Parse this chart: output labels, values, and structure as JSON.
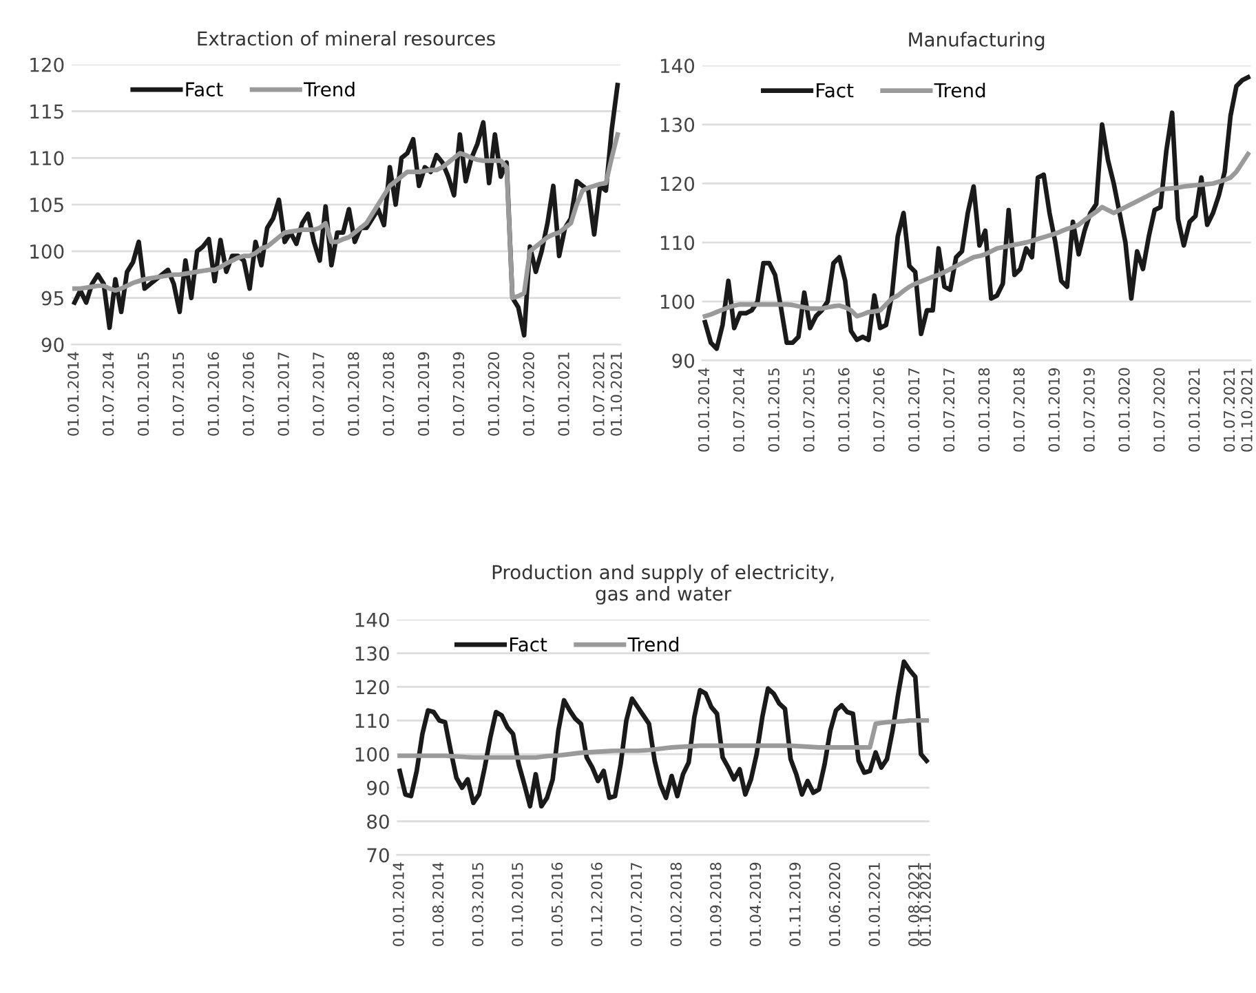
{
  "chart_data": [
    {
      "type": "line",
      "title": "Extraction of mineral resources",
      "ylim": [
        90,
        120
      ],
      "yticks": [
        90,
        95,
        100,
        105,
        110,
        115,
        120
      ],
      "grid": "y",
      "legend": "top left",
      "line_style": "solid",
      "marker": "none",
      "categories": [
        "01.01.2014",
        null,
        null,
        null,
        null,
        null,
        "01.07.2014",
        null,
        null,
        null,
        null,
        null,
        "01.01.2015",
        null,
        null,
        null,
        null,
        null,
        "01.07.2015",
        null,
        null,
        null,
        null,
        null,
        "01.01.2016",
        null,
        null,
        null,
        null,
        null,
        "01.07.2016",
        null,
        null,
        null,
        null,
        null,
        "01.01.2017",
        null,
        null,
        null,
        null,
        null,
        "01.07.2017",
        null,
        null,
        null,
        null,
        null,
        "01.01.2018",
        null,
        null,
        null,
        null,
        null,
        "01.07.2018",
        null,
        null,
        null,
        null,
        null,
        "01.01.2019",
        null,
        null,
        null,
        null,
        null,
        "01.07.2019",
        null,
        null,
        null,
        null,
        null,
        "01.01.2020",
        null,
        null,
        null,
        null,
        null,
        "01.07.2020",
        null,
        null,
        null,
        null,
        null,
        "01.01.2021",
        null,
        null,
        null,
        null,
        null,
        "01.07.2021",
        null,
        null,
        "01.10.2021"
      ],
      "series": [
        {
          "name": "Fact",
          "color": "#1a1a1a",
          "values": [
            94.5,
            95.8,
            94.5,
            96.5,
            97.5,
            96.5,
            91.8,
            97,
            93.5,
            97.8,
            98.8,
            101,
            96,
            96.5,
            97,
            97.5,
            98,
            96.5,
            93.5,
            99,
            95,
            100,
            100.5,
            101.3,
            96.8,
            101.2,
            97.8,
            99.5,
            99.5,
            99,
            96,
            101,
            98.5,
            102.5,
            103.5,
            105.5,
            101,
            102,
            100.8,
            103,
            104,
            101,
            99,
            104.8,
            98.5,
            102,
            102,
            104.5,
            101,
            102.5,
            102.5,
            103.5,
            104.5,
            102.8,
            109,
            105,
            110,
            110.5,
            112,
            107,
            109,
            108.5,
            110.3,
            109.5,
            108,
            106,
            112.5,
            107.5,
            110,
            111.5,
            113.8,
            107.3,
            112.5,
            108,
            109.5,
            95,
            94,
            91,
            100.5,
            97.8,
            100,
            103,
            107,
            99.5,
            102.5,
            103.5,
            107.5,
            107,
            106.5,
            101.8,
            107,
            106.5,
            113,
            117.8
          ]
        },
        {
          "name": "Trend",
          "color": "#9a9a9a",
          "values": [
            96,
            96,
            96.1,
            96.2,
            96.3,
            96.3,
            96,
            95.8,
            96,
            96.3,
            96.6,
            96.8,
            97,
            97.1,
            97.2,
            97.3,
            97.4,
            97.5,
            97.5,
            97.6,
            97.7,
            97.8,
            97.9,
            98,
            98,
            98.3,
            98.7,
            99,
            99.3,
            99.5,
            99.5,
            99.8,
            100.3,
            100.5,
            101,
            101.5,
            102,
            102.1,
            102.2,
            102.3,
            102.3,
            102.3,
            102.5,
            103,
            101,
            101,
            101.3,
            101.5,
            102,
            102.5,
            103,
            104,
            105,
            106,
            107,
            107.5,
            108,
            108.5,
            108.5,
            108.5,
            108.6,
            108.7,
            108.7,
            109,
            109.5,
            110,
            110.5,
            110.3,
            110,
            109.8,
            109.7,
            109.7,
            109.7,
            109.7,
            109,
            95,
            95.2,
            95.5,
            100,
            100.5,
            101,
            101.5,
            101.8,
            102,
            102.5,
            103,
            105,
            106.5,
            106.8,
            107,
            107.2,
            107.3,
            110,
            112.5
          ]
        }
      ]
    },
    {
      "type": "line",
      "title": "Manufacturing",
      "ylim": [
        90,
        140
      ],
      "yticks": [
        90,
        100,
        110,
        120,
        130,
        140
      ],
      "grid": "y",
      "legend": "top left",
      "line_style": "solid",
      "marker": "none",
      "categories": [
        "01.01.2014",
        null,
        null,
        null,
        null,
        null,
        "01.07.2014",
        null,
        null,
        null,
        null,
        null,
        "01.01.2015",
        null,
        null,
        null,
        null,
        null,
        "01.07.2015",
        null,
        null,
        null,
        null,
        null,
        "01.01.2016",
        null,
        null,
        null,
        null,
        null,
        "01.07.2016",
        null,
        null,
        null,
        null,
        null,
        "01.01.2017",
        null,
        null,
        null,
        null,
        null,
        "01.07.2017",
        null,
        null,
        null,
        null,
        null,
        "01.01.2018",
        null,
        null,
        null,
        null,
        null,
        "01.07.2018",
        null,
        null,
        null,
        null,
        null,
        "01.01.2019",
        null,
        null,
        null,
        null,
        null,
        "01.07.2019",
        null,
        null,
        null,
        null,
        null,
        "01.01.2020",
        null,
        null,
        null,
        null,
        null,
        "01.07.2020",
        null,
        null,
        null,
        null,
        null,
        "01.01.2021",
        null,
        null,
        null,
        null,
        null,
        "01.07.2021",
        null,
        null,
        "01.10.2021"
      ],
      "series": [
        {
          "name": "Fact",
          "color": "#1a1a1a",
          "values": [
            96.5,
            93,
            92,
            96,
            103.5,
            95.5,
            98,
            98,
            98.5,
            100,
            106.5,
            106.5,
            104.5,
            99,
            93,
            93,
            94,
            101.5,
            95.5,
            97.5,
            98.5,
            100,
            106.5,
            107.5,
            103.5,
            95,
            93.5,
            94,
            93.5,
            101,
            95.5,
            96,
            101,
            111,
            115,
            106,
            105,
            94.5,
            98.5,
            98.5,
            109,
            102.5,
            102,
            107.5,
            108.5,
            115,
            119.5,
            109.5,
            112,
            100.5,
            101,
            103,
            115.5,
            104.5,
            105.5,
            109,
            107.5,
            121,
            121.5,
            115,
            110,
            103.5,
            102.5,
            113.5,
            108,
            112,
            115,
            116.5,
            130,
            124,
            120,
            115,
            110,
            100.5,
            108.5,
            105.5,
            111,
            115.5,
            116,
            125.5,
            132,
            114,
            109.5,
            113.5,
            114.5,
            121,
            113,
            115,
            118,
            122,
            131.5,
            136.5,
            137.5,
            138
          ]
        },
        {
          "name": "Trend",
          "color": "#9a9a9a",
          "values": [
            97.5,
            97.8,
            98.2,
            98.6,
            99,
            99.3,
            99.5,
            99.5,
            99.5,
            99.5,
            99.5,
            99.5,
            99.5,
            99.5,
            99.5,
            99.4,
            99.2,
            99,
            98.8,
            98.8,
            98.8,
            99,
            99.2,
            99.3,
            99,
            98.5,
            97.5,
            97.8,
            98.2,
            98.3,
            98.5,
            99.5,
            100.5,
            101,
            101.8,
            102.5,
            103,
            103.4,
            103.8,
            104.2,
            104.5,
            105,
            105.5,
            106,
            106.5,
            107,
            107.5,
            107.7,
            108,
            108.5,
            109,
            109.2,
            109.4,
            109.6,
            109.8,
            110,
            110.3,
            110.6,
            110.9,
            111.2,
            111.5,
            111.9,
            112.3,
            112.6,
            113,
            113.8,
            114.5,
            115.2,
            116,
            115.5,
            115,
            115.5,
            116,
            116.5,
            117,
            117.5,
            118,
            118.5,
            119,
            119.1,
            119.2,
            119.3,
            119.5,
            119.6,
            119.7,
            119.8,
            119.9,
            120,
            120.3,
            120.6,
            121,
            122,
            123.5,
            125
          ]
        }
      ]
    },
    {
      "type": "line",
      "title": "Production and supply of electricity,\ngas and water",
      "ylim": [
        70,
        140
      ],
      "yticks": [
        70,
        80,
        90,
        100,
        110,
        120,
        130,
        140
      ],
      "grid": "y",
      "legend": "top left",
      "line_style": "solid",
      "marker": "none",
      "categories": [
        "01.01.2014",
        null,
        null,
        null,
        null,
        null,
        null,
        "01.08.2014",
        null,
        null,
        null,
        null,
        null,
        null,
        "01.03.2015",
        null,
        null,
        null,
        null,
        null,
        null,
        "01.10.2015",
        null,
        null,
        null,
        null,
        null,
        null,
        "01.05.2016",
        null,
        null,
        null,
        null,
        null,
        null,
        "01.12.2016",
        null,
        null,
        null,
        null,
        null,
        null,
        "01.07.2017",
        null,
        null,
        null,
        null,
        null,
        null,
        "01.02.2018",
        null,
        null,
        null,
        null,
        null,
        null,
        "01.09.2018",
        null,
        null,
        null,
        null,
        null,
        null,
        "01.04.2019",
        null,
        null,
        null,
        null,
        null,
        null,
        "01.11.2019",
        null,
        null,
        null,
        null,
        null,
        null,
        "01.06.2020",
        null,
        null,
        null,
        null,
        null,
        null,
        "01.01.2021",
        null,
        null,
        null,
        null,
        null,
        null,
        "01.08.2021",
        null,
        "01.10.2021"
      ],
      "series": [
        {
          "name": "Fact",
          "color": "#1a1a1a",
          "values": [
            95,
            88,
            87.5,
            95,
            106,
            113,
            112.5,
            110,
            109.5,
            101,
            93,
            90,
            92.5,
            85.5,
            88,
            96,
            105,
            112.5,
            111.5,
            108,
            106,
            97,
            91,
            84.5,
            94,
            84.5,
            87,
            92.5,
            107,
            116,
            113,
            110.5,
            109,
            99,
            96,
            92,
            95,
            87,
            87.5,
            97,
            110,
            116.5,
            114,
            111.5,
            109,
            98,
            91,
            87,
            93.5,
            87.5,
            94,
            97.5,
            111,
            119,
            118,
            114,
            112,
            99,
            96,
            92.5,
            95.5,
            88,
            92.5,
            100,
            111,
            119.5,
            118,
            115,
            113.5,
            98.5,
            94,
            88,
            92,
            88.5,
            89.5,
            97,
            107,
            113,
            114.5,
            112.5,
            112,
            98,
            94.5,
            95,
            100.5,
            96,
            98.5,
            107,
            118,
            127.5,
            125,
            123,
            100,
            98
          ]
        },
        {
          "name": "Trend",
          "color": "#9a9a9a",
          "values": [
            99.5,
            99.5,
            99.5,
            99.5,
            99.5,
            99.5,
            99.5,
            99.5,
            99.5,
            99.4,
            99.3,
            99.2,
            99.1,
            99,
            99,
            99,
            99,
            99,
            99,
            99,
            99,
            99,
            99,
            99,
            99,
            99.2,
            99.4,
            99.5,
            99.6,
            99.8,
            100,
            100.2,
            100.4,
            100.5,
            100.6,
            100.7,
            100.8,
            100.9,
            101,
            101,
            101,
            101,
            101,
            101.1,
            101.2,
            101.4,
            101.6,
            101.8,
            102,
            102.1,
            102.2,
            102.3,
            102.4,
            102.5,
            102.5,
            102.5,
            102.5,
            102.5,
            102.5,
            102.5,
            102.5,
            102.5,
            102.5,
            102.5,
            102.5,
            102.5,
            102.5,
            102.5,
            102.5,
            102.5,
            102.4,
            102.3,
            102.2,
            102.1,
            102,
            102,
            102,
            102,
            102,
            102,
            102,
            102,
            102,
            102,
            109,
            109.3,
            109.5,
            109.6,
            109.7,
            109.8,
            110,
            110,
            110,
            110
          ]
        }
      ]
    }
  ]
}
